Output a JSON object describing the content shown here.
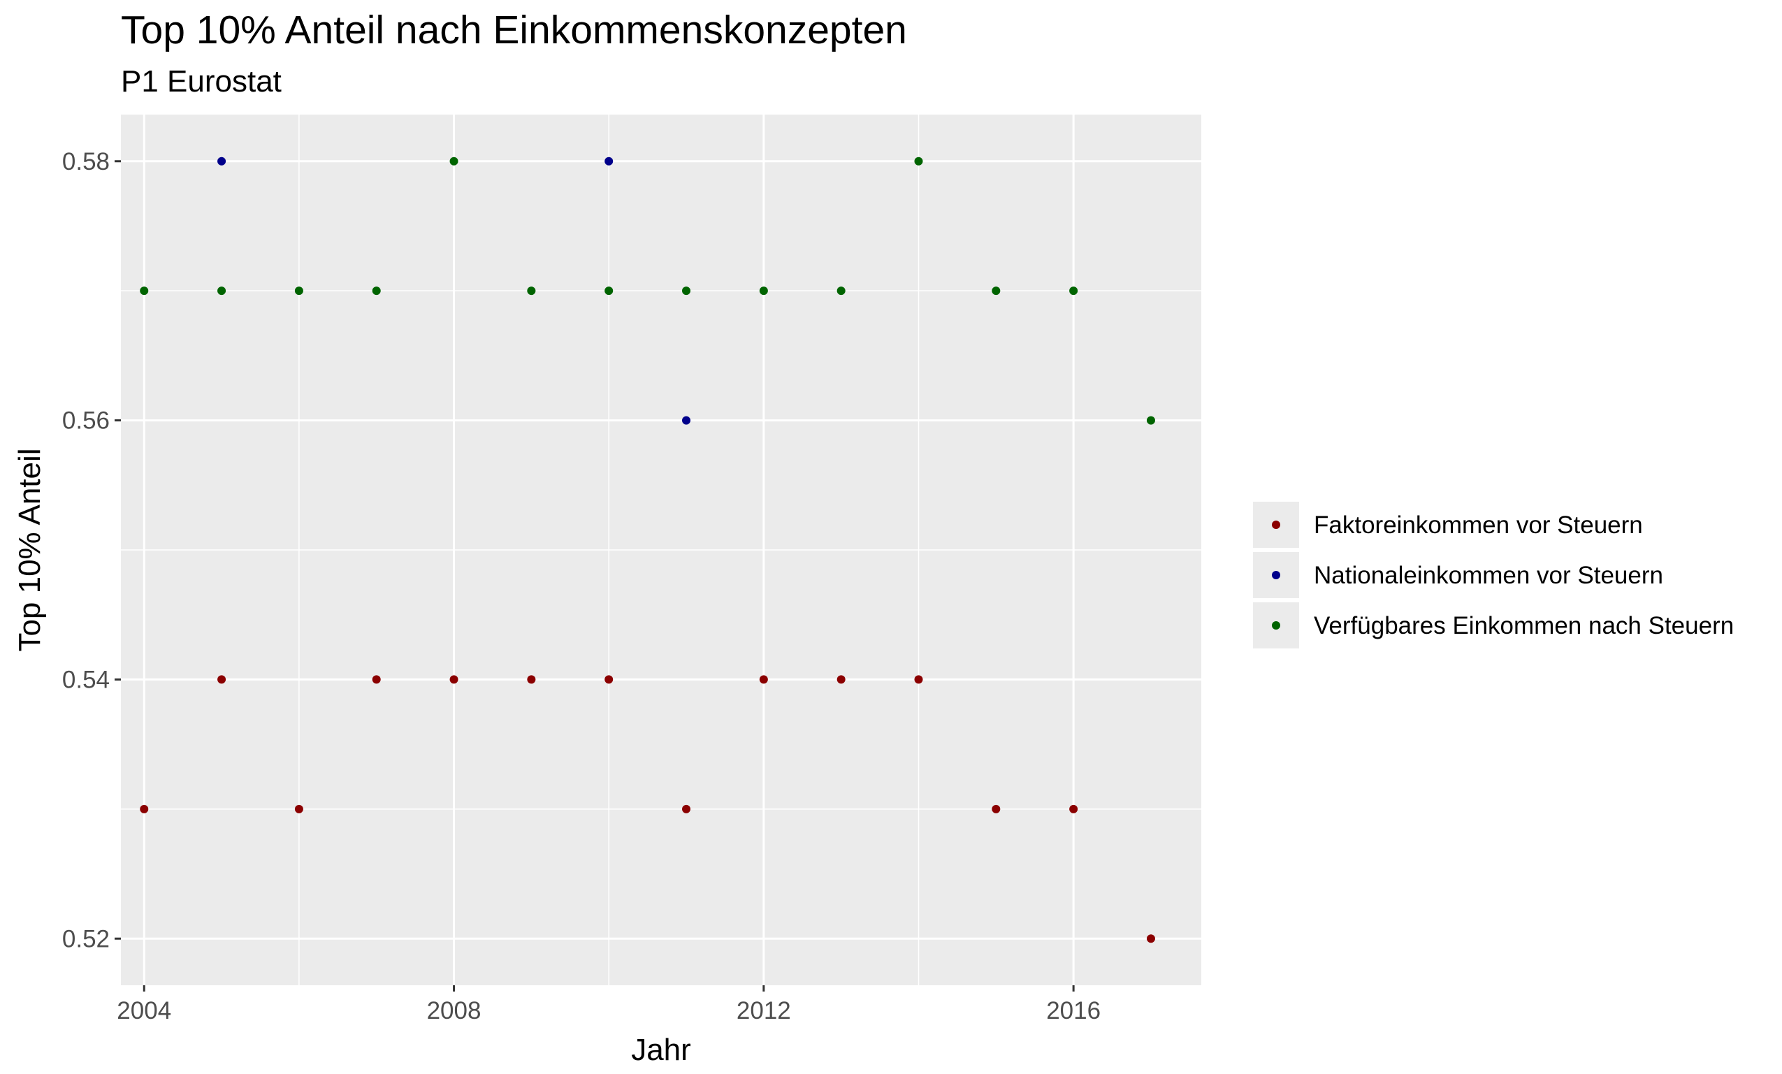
{
  "chart_data": {
    "type": "scatter",
    "title": "Top 10% Anteil nach Einkommenskonzepten",
    "subtitle": "P1 Eurostat",
    "xlabel": "Jahr",
    "ylabel": "Top 10% Anteil",
    "xlim": [
      2003.7,
      2017.65
    ],
    "ylim": [
      0.5164,
      0.5836
    ],
    "x_ticks": [
      2004,
      2008,
      2012,
      2016
    ],
    "x_minor_ticks": [
      2006,
      2010,
      2014
    ],
    "y_ticks": [
      0.52,
      0.54,
      0.56,
      0.58
    ],
    "y_minor_ticks": [
      0.53,
      0.55,
      0.57
    ],
    "grid": true,
    "legend_position": "right",
    "series": [
      {
        "name": "Faktoreinkommen vor Steuern",
        "color": "#8b0000",
        "points": [
          {
            "x": 2004,
            "y": 0.53
          },
          {
            "x": 2005,
            "y": 0.54
          },
          {
            "x": 2006,
            "y": 0.53
          },
          {
            "x": 2007,
            "y": 0.54
          },
          {
            "x": 2008,
            "y": 0.54
          },
          {
            "x": 2009,
            "y": 0.54
          },
          {
            "x": 2010,
            "y": 0.54
          },
          {
            "x": 2011,
            "y": 0.53
          },
          {
            "x": 2012,
            "y": 0.54
          },
          {
            "x": 2013,
            "y": 0.54
          },
          {
            "x": 2014,
            "y": 0.54
          },
          {
            "x": 2015,
            "y": 0.53
          },
          {
            "x": 2016,
            "y": 0.53
          },
          {
            "x": 2017,
            "y": 0.52
          }
        ]
      },
      {
        "name": "Nationaleinkommen vor Steuern",
        "color": "#00008b",
        "points": [
          {
            "x": 2005,
            "y": 0.58
          },
          {
            "x": 2010,
            "y": 0.58
          },
          {
            "x": 2011,
            "y": 0.56
          }
        ]
      },
      {
        "name": "Verfügbares Einkommen nach Steuern",
        "color": "#006400",
        "points": [
          {
            "x": 2004,
            "y": 0.57
          },
          {
            "x": 2005,
            "y": 0.57
          },
          {
            "x": 2006,
            "y": 0.57
          },
          {
            "x": 2007,
            "y": 0.57
          },
          {
            "x": 2008,
            "y": 0.58
          },
          {
            "x": 2009,
            "y": 0.57
          },
          {
            "x": 2010,
            "y": 0.57
          },
          {
            "x": 2011,
            "y": 0.57
          },
          {
            "x": 2012,
            "y": 0.57
          },
          {
            "x": 2013,
            "y": 0.57
          },
          {
            "x": 2014,
            "y": 0.58
          },
          {
            "x": 2015,
            "y": 0.57
          },
          {
            "x": 2016,
            "y": 0.57
          },
          {
            "x": 2017,
            "y": 0.56
          }
        ]
      }
    ]
  }
}
